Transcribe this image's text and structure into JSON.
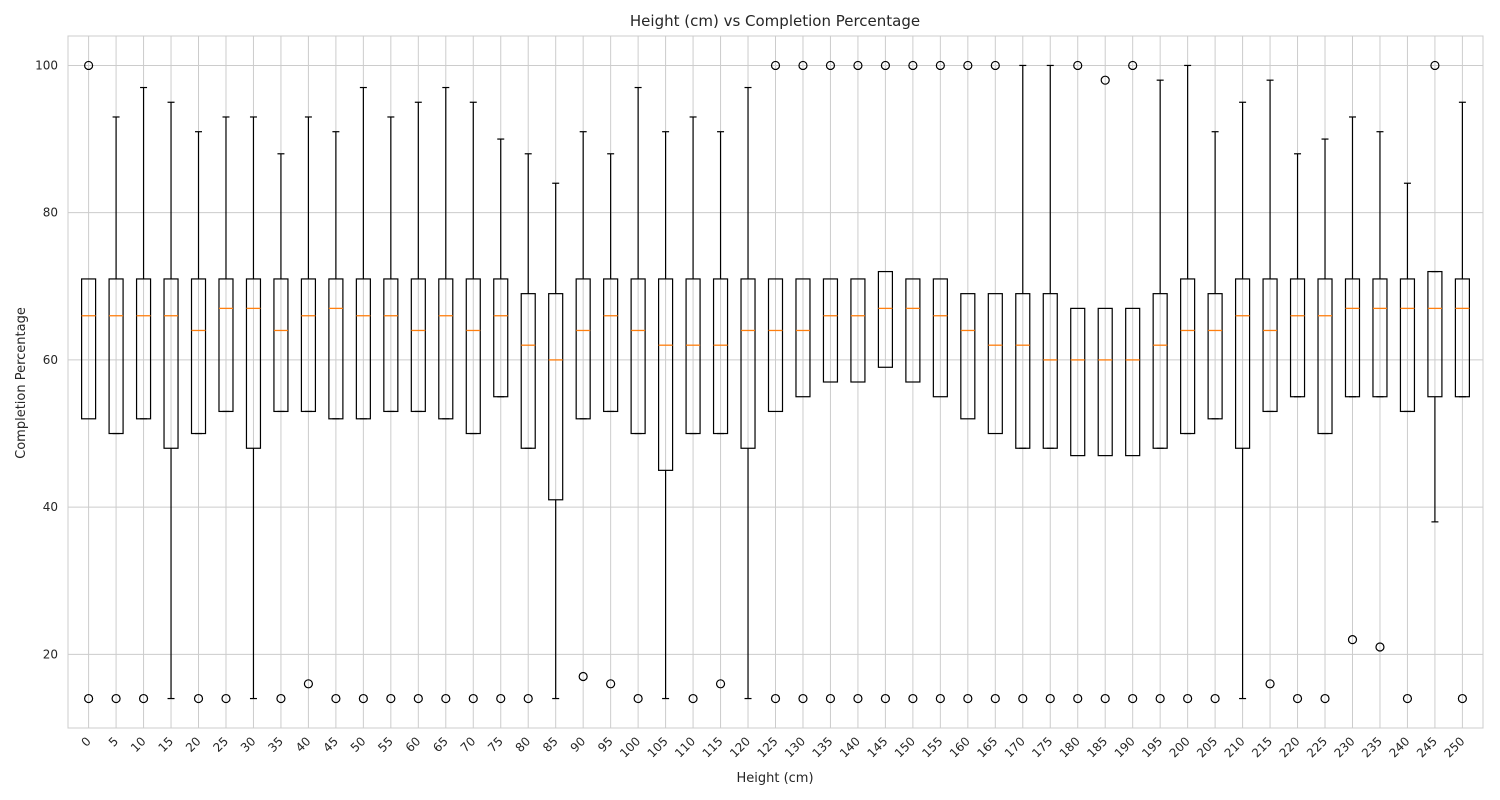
{
  "chart_data": {
    "type": "box",
    "title": "Height (cm) vs Completion Percentage",
    "xlabel": "Height (cm)",
    "ylabel": "Completion Percentage",
    "ylim": [
      10,
      104
    ],
    "yticks": [
      20,
      40,
      60,
      80,
      100
    ],
    "grid": true,
    "colors": {
      "box": "#000000",
      "median": "#ff7f0e",
      "grid": "#cccccc",
      "frame": "#cccccc"
    },
    "categories": [
      "0",
      "5",
      "10",
      "15",
      "20",
      "25",
      "30",
      "35",
      "40",
      "45",
      "50",
      "55",
      "60",
      "65",
      "70",
      "75",
      "80",
      "85",
      "90",
      "95",
      "100",
      "105",
      "110",
      "115",
      "120",
      "125",
      "130",
      "135",
      "140",
      "145",
      "150",
      "155",
      "160",
      "165",
      "170",
      "175",
      "180",
      "185",
      "190",
      "195",
      "200",
      "205",
      "210",
      "215",
      "220",
      "225",
      "230",
      "235",
      "240",
      "245",
      "250"
    ],
    "boxes": [
      {
        "min": null,
        "q1": 52,
        "median": 66,
        "q3": 71,
        "max": null,
        "outliers": [
          100,
          14
        ]
      },
      {
        "min": 50,
        "q1": 50,
        "median": 66,
        "q3": 71,
        "max": 93,
        "outliers": [
          14
        ]
      },
      {
        "min": 52,
        "q1": 52,
        "median": 66,
        "q3": 71,
        "max": 97,
        "outliers": [
          14
        ]
      },
      {
        "min": 14,
        "q1": 48,
        "median": 66,
        "q3": 71,
        "max": 95,
        "outliers": []
      },
      {
        "min": 50,
        "q1": 50,
        "median": 64,
        "q3": 71,
        "max": 91,
        "outliers": [
          14
        ]
      },
      {
        "min": 53,
        "q1": 53,
        "median": 67,
        "q3": 71,
        "max": 93,
        "outliers": [
          14
        ]
      },
      {
        "min": 14,
        "q1": 48,
        "median": 67,
        "q3": 71,
        "max": 93,
        "outliers": []
      },
      {
        "min": 53,
        "q1": 53,
        "median": 64,
        "q3": 71,
        "max": 88,
        "outliers": [
          14
        ]
      },
      {
        "min": 53,
        "q1": 53,
        "median": 66,
        "q3": 71,
        "max": 93,
        "outliers": [
          16
        ]
      },
      {
        "min": 52,
        "q1": 52,
        "median": 67,
        "q3": 71,
        "max": 91,
        "outliers": [
          14
        ]
      },
      {
        "min": 52,
        "q1": 52,
        "median": 66,
        "q3": 71,
        "max": 97,
        "outliers": [
          14
        ]
      },
      {
        "min": 53,
        "q1": 53,
        "median": 66,
        "q3": 71,
        "max": 93,
        "outliers": [
          14
        ]
      },
      {
        "min": 53,
        "q1": 53,
        "median": 64,
        "q3": 71,
        "max": 95,
        "outliers": [
          14
        ]
      },
      {
        "min": 52,
        "q1": 52,
        "median": 66,
        "q3": 71,
        "max": 97,
        "outliers": [
          14
        ]
      },
      {
        "min": 50,
        "q1": 50,
        "median": 64,
        "q3": 71,
        "max": 95,
        "outliers": [
          14
        ]
      },
      {
        "min": 55,
        "q1": 55,
        "median": 66,
        "q3": 71,
        "max": 90,
        "outliers": [
          14
        ]
      },
      {
        "min": 48,
        "q1": 48,
        "median": 62,
        "q3": 69,
        "max": 88,
        "outliers": [
          14
        ]
      },
      {
        "min": 14,
        "q1": 41,
        "median": 60,
        "q3": 69,
        "max": 84,
        "outliers": []
      },
      {
        "min": 52,
        "q1": 52,
        "median": 64,
        "q3": 71,
        "max": 91,
        "outliers": [
          17
        ]
      },
      {
        "min": 53,
        "q1": 53,
        "median": 66,
        "q3": 71,
        "max": 88,
        "outliers": [
          16
        ]
      },
      {
        "min": 50,
        "q1": 50,
        "median": 64,
        "q3": 71,
        "max": 97,
        "outliers": [
          14
        ]
      },
      {
        "min": 14,
        "q1": 45,
        "median": 62,
        "q3": 71,
        "max": 91,
        "outliers": []
      },
      {
        "min": 50,
        "q1": 50,
        "median": 62,
        "q3": 71,
        "max": 93,
        "outliers": [
          14
        ]
      },
      {
        "min": 50,
        "q1": 50,
        "median": 62,
        "q3": 71,
        "max": 91,
        "outliers": [
          16
        ]
      },
      {
        "min": 14,
        "q1": 48,
        "median": 64,
        "q3": 71,
        "max": 97,
        "outliers": []
      },
      {
        "min": null,
        "q1": 53,
        "median": 64,
        "q3": 71,
        "max": null,
        "outliers": [
          100,
          14
        ]
      },
      {
        "min": null,
        "q1": 55,
        "median": 64,
        "q3": 71,
        "max": null,
        "outliers": [
          100,
          14
        ]
      },
      {
        "min": null,
        "q1": 57,
        "median": 66,
        "q3": 71,
        "max": null,
        "outliers": [
          100,
          14
        ]
      },
      {
        "min": null,
        "q1": 57,
        "median": 66,
        "q3": 71,
        "max": null,
        "outliers": [
          100,
          14
        ]
      },
      {
        "min": null,
        "q1": 59,
        "median": 67,
        "q3": 72,
        "max": null,
        "outliers": [
          100,
          14
        ]
      },
      {
        "min": null,
        "q1": 57,
        "median": 67,
        "q3": 71,
        "max": null,
        "outliers": [
          100,
          14
        ]
      },
      {
        "min": null,
        "q1": 55,
        "median": 66,
        "q3": 71,
        "max": null,
        "outliers": [
          100,
          14
        ]
      },
      {
        "min": null,
        "q1": 52,
        "median": 64,
        "q3": 69,
        "max": null,
        "outliers": [
          100,
          14
        ]
      },
      {
        "min": null,
        "q1": 50,
        "median": 62,
        "q3": 69,
        "max": null,
        "outliers": [
          100,
          14
        ]
      },
      {
        "min": 48,
        "q1": 48,
        "median": 62,
        "q3": 69,
        "max": 100,
        "outliers": [
          14
        ]
      },
      {
        "min": 48,
        "q1": 48,
        "median": 60,
        "q3": 69,
        "max": 100,
        "outliers": [
          14
        ]
      },
      {
        "min": null,
        "q1": 47,
        "median": 60,
        "q3": 67,
        "max": null,
        "outliers": [
          100,
          14
        ]
      },
      {
        "min": null,
        "q1": 47,
        "median": 60,
        "q3": 67,
        "max": null,
        "outliers": [
          98,
          14
        ]
      },
      {
        "min": null,
        "q1": 47,
        "median": 60,
        "q3": 67,
        "max": null,
        "outliers": [
          100,
          14
        ]
      },
      {
        "min": 48,
        "q1": 48,
        "median": 62,
        "q3": 69,
        "max": 98,
        "outliers": [
          14
        ]
      },
      {
        "min": 50,
        "q1": 50,
        "median": 64,
        "q3": 71,
        "max": 100,
        "outliers": [
          14
        ]
      },
      {
        "min": 52,
        "q1": 52,
        "median": 64,
        "q3": 69,
        "max": 91,
        "outliers": [
          14
        ]
      },
      {
        "min": 14,
        "q1": 48,
        "median": 66,
        "q3": 71,
        "max": 95,
        "outliers": []
      },
      {
        "min": 53,
        "q1": 53,
        "median": 64,
        "q3": 71,
        "max": 98,
        "outliers": [
          16
        ]
      },
      {
        "min": 55,
        "q1": 55,
        "median": 66,
        "q3": 71,
        "max": 88,
        "outliers": [
          14
        ]
      },
      {
        "min": 50,
        "q1": 50,
        "median": 66,
        "q3": 71,
        "max": 90,
        "outliers": [
          14
        ]
      },
      {
        "min": 55,
        "q1": 55,
        "median": 67,
        "q3": 71,
        "max": 93,
        "outliers": [
          22
        ]
      },
      {
        "min": 55,
        "q1": 55,
        "median": 67,
        "q3": 71,
        "max": 91,
        "outliers": [
          21
        ]
      },
      {
        "min": 53,
        "q1": 53,
        "median": 67,
        "q3": 71,
        "max": 84,
        "outliers": [
          14
        ]
      },
      {
        "min": 38,
        "q1": 55,
        "median": 67,
        "q3": 72,
        "max": 72,
        "outliers": [
          100
        ]
      },
      {
        "min": 55,
        "q1": 55,
        "median": 67,
        "q3": 71,
        "max": 95,
        "outliers": [
          14
        ]
      }
    ]
  }
}
